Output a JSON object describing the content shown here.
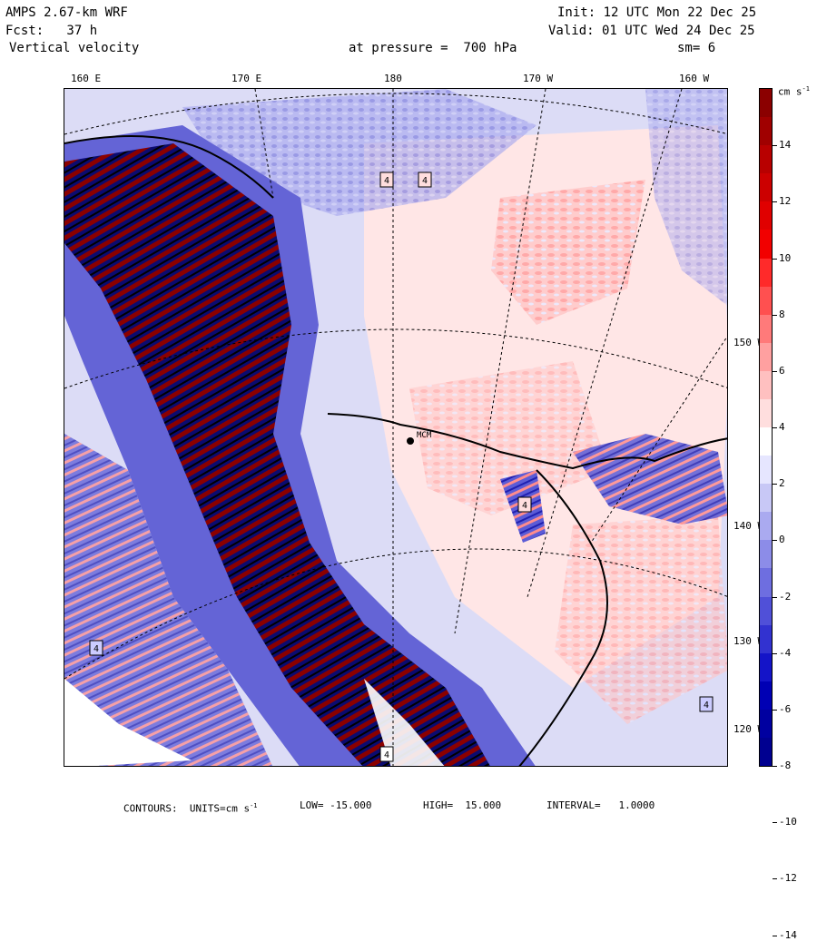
{
  "header": {
    "model": "AMPS 2.67-km WRF",
    "forecast": "Fcst:   37 h",
    "field": "Vertical velocity",
    "pressure": "at pressure =  700 hPa",
    "init": "Init: 12 UTC Mon 22 Dec 25",
    "valid": "Valid: 01 UTC Wed 24 Dec 25",
    "smoothing": "sm= 6"
  },
  "longitude_labels": [
    "160 E",
    "170 E",
    "180",
    "170 W",
    "160 W"
  ],
  "latitude_labels": [
    "150 W",
    "140 W",
    "130 W",
    "120 W"
  ],
  "station_label": "MCM",
  "extremum_marker": "4",
  "colorbar": {
    "unit": "cm s",
    "unit_exp": "-1",
    "labels": [
      "14",
      "12",
      "10",
      "8",
      "6",
      "4",
      "2",
      "0",
      "-2",
      "-4",
      "-6",
      "-8",
      "-10",
      "-12",
      "-14"
    ],
    "colors": [
      "#8b0000",
      "#a00000",
      "#b80000",
      "#cc0000",
      "#e00000",
      "#f20000",
      "#ff2a2a",
      "#ff5050",
      "#ff7a7a",
      "#ffa0a0",
      "#ffc0c0",
      "#ffdede",
      "#ffffff",
      "#e6e6ff",
      "#c8c8f6",
      "#aaaaf0",
      "#8c8ce8",
      "#6e6ee0",
      "#5050d8",
      "#3232d0",
      "#1414c8",
      "#0000b4",
      "#0000a0",
      "#000090"
    ]
  },
  "footer": {
    "contours": "CONTOURS:  UNITS=cm s",
    "unit_exp": "-1",
    "low": "LOW= -15.000",
    "high": "HIGH=  15.000",
    "interval": "INTERVAL=   1.0000"
  }
}
